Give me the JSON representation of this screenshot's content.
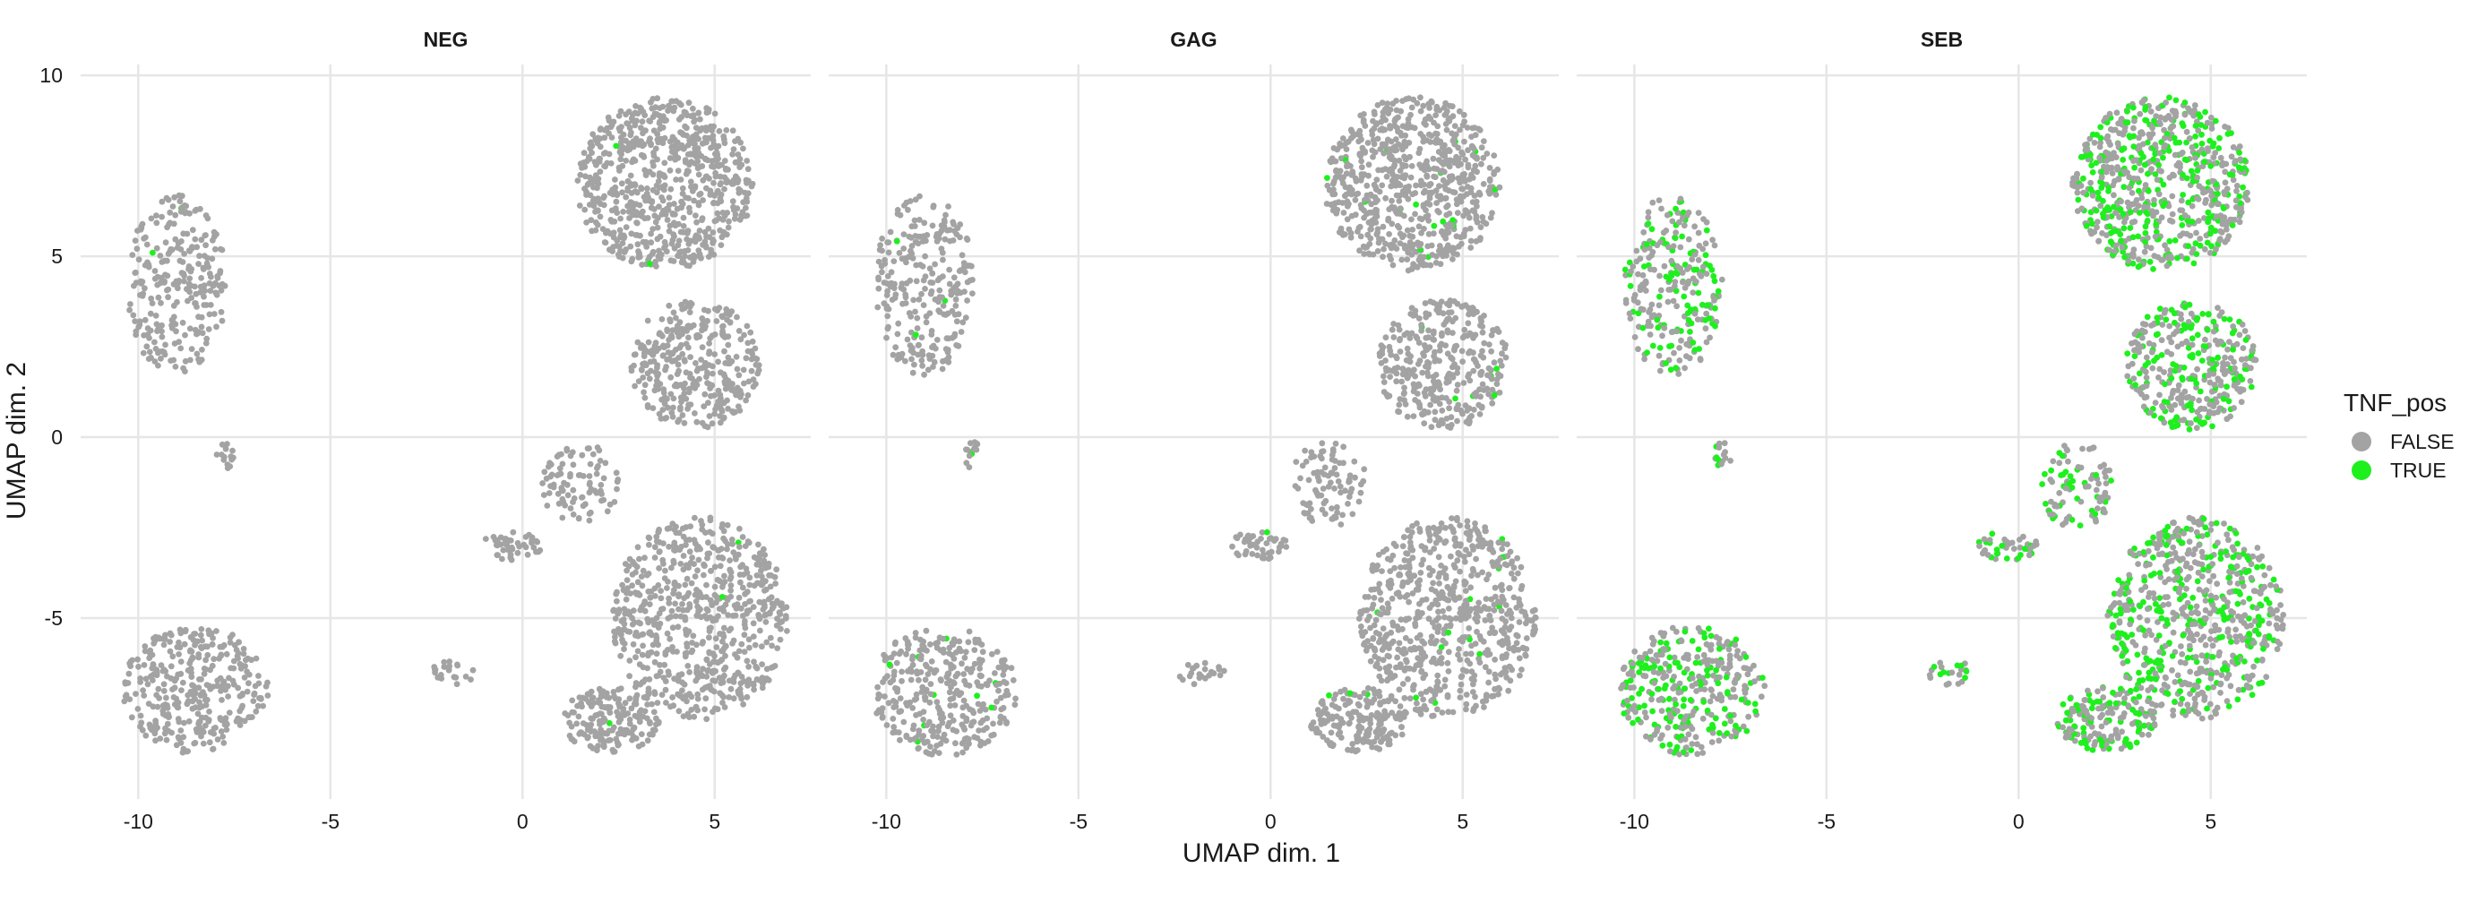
{
  "chart_data": {
    "type": "scatter",
    "facet_by": "condition",
    "panels": [
      "NEG",
      "GAG",
      "SEB"
    ],
    "xlabel": "UMAP dim. 1",
    "ylabel": "UMAP dim. 2",
    "xlim": [
      -11.5,
      7.5
    ],
    "ylim": [
      -10.0,
      10.3
    ],
    "x_ticks": [
      -10,
      -5,
      0,
      5
    ],
    "y_ticks": [
      -5,
      0,
      5,
      10
    ],
    "x_tick_labels": [
      "-10",
      "-5",
      "0",
      "5"
    ],
    "y_tick_labels": [
      "-5",
      "0",
      "5",
      "10"
    ],
    "grid": true,
    "legend": {
      "title": "TNF_pos",
      "position": "right",
      "entries": [
        {
          "label": "FALSE",
          "color": "#a3a3a3"
        },
        {
          "label": "TRUE",
          "color": "#1ef01e"
        }
      ]
    },
    "series": [
      {
        "name": "FALSE",
        "color": "#a3a3a3"
      },
      {
        "name": "TRUE",
        "color": "#1ef01e"
      }
    ],
    "clusters": [
      {
        "cx": -9.0,
        "cy": 4.2,
        "rx": 1.3,
        "ry": 2.5,
        "n": 260
      },
      {
        "cx": -7.7,
        "cy": -0.5,
        "rx": 0.3,
        "ry": 0.4,
        "n": 14
      },
      {
        "cx": -8.5,
        "cy": -7.0,
        "rx": 1.9,
        "ry": 1.8,
        "n": 340
      },
      {
        "cx": 3.7,
        "cy": 7.0,
        "rx": 2.3,
        "ry": 2.4,
        "n": 700
      },
      {
        "cx": 4.5,
        "cy": 2.0,
        "rx": 1.7,
        "ry": 1.8,
        "n": 340
      },
      {
        "cx": 4.6,
        "cy": -5.0,
        "rx": 2.3,
        "ry": 2.8,
        "n": 650
      },
      {
        "cx": 1.5,
        "cy": -1.3,
        "rx": 1.0,
        "ry": 1.2,
        "n": 90
      },
      {
        "cx": -0.3,
        "cy": -3.0,
        "rx": 0.8,
        "ry": 0.4,
        "n": 45
      },
      {
        "cx": 2.3,
        "cy": -7.8,
        "rx": 1.3,
        "ry": 0.9,
        "n": 180
      },
      {
        "cx": -1.8,
        "cy": -6.5,
        "rx": 0.6,
        "ry": 0.35,
        "n": 22
      }
    ],
    "true_fraction": {
      "NEG": 0.005,
      "GAG": 0.02,
      "SEB": 0.38
    }
  }
}
